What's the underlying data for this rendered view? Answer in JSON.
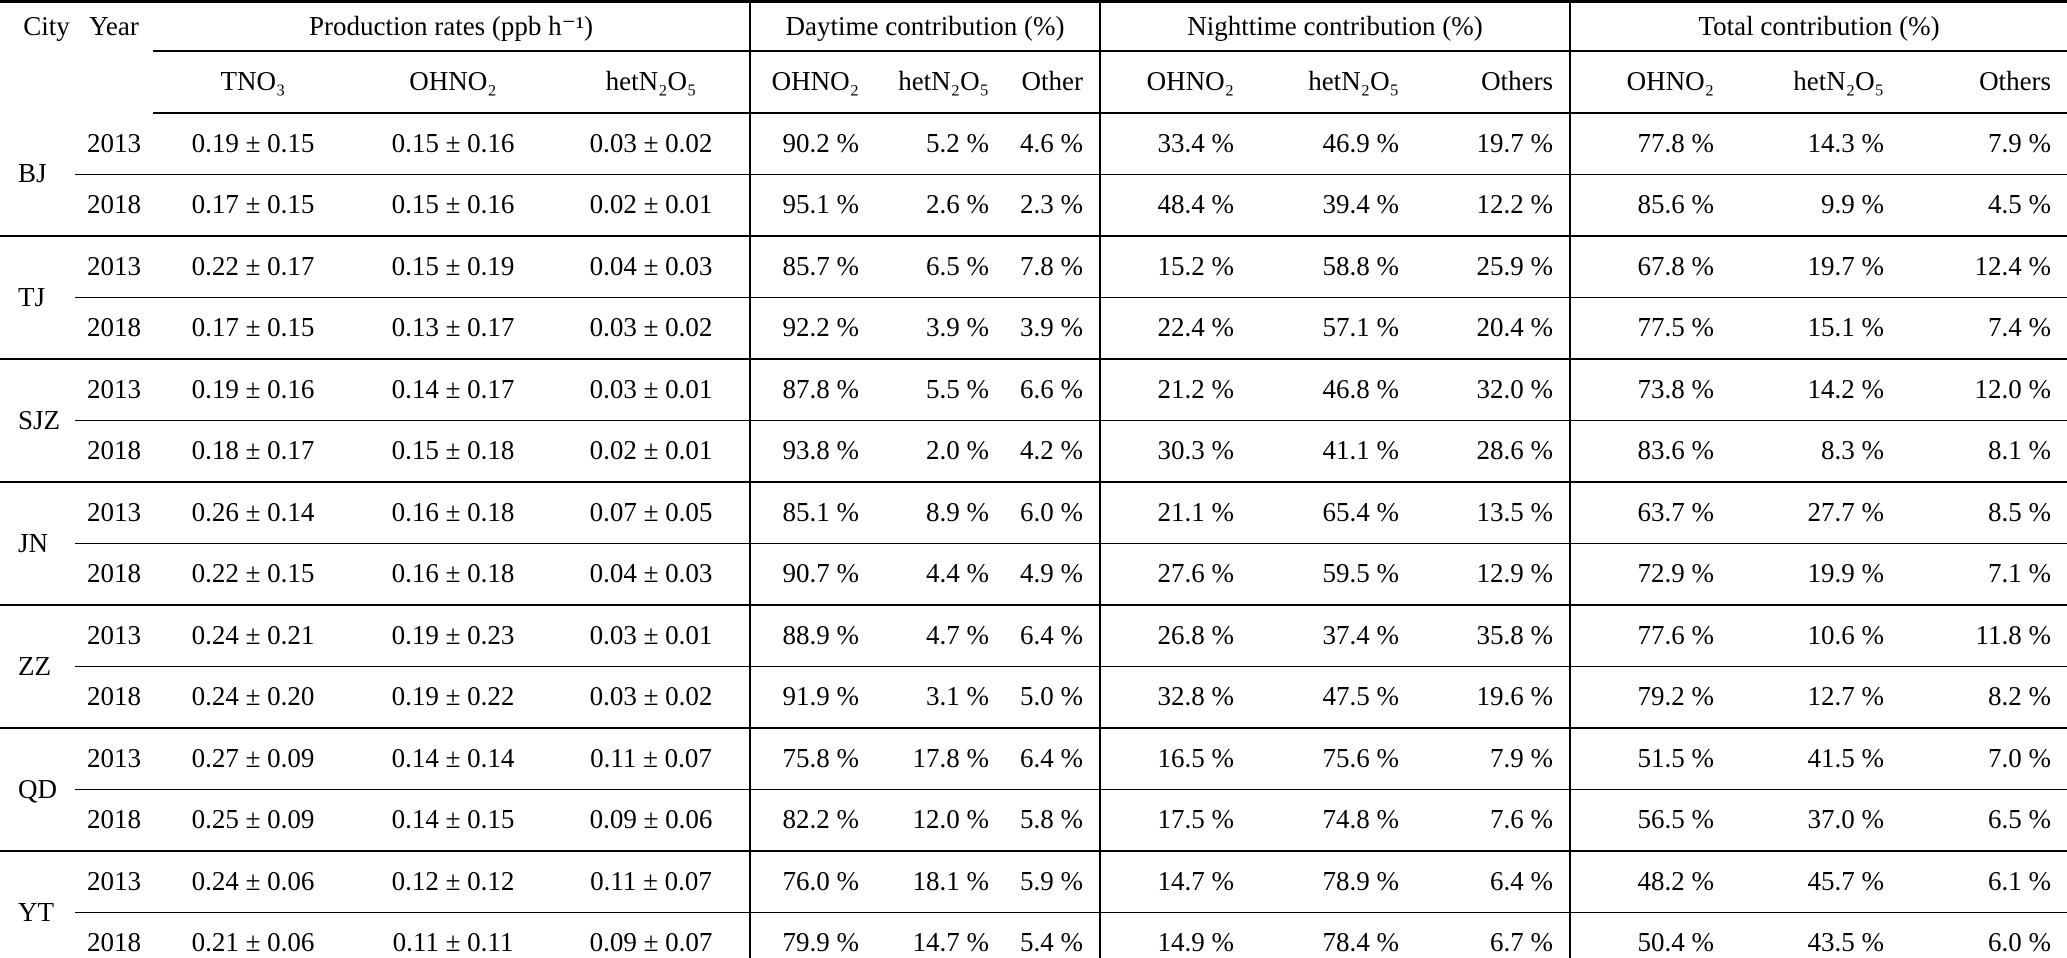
{
  "table": {
    "header": {
      "city": "City",
      "year": "Year",
      "groups": [
        {
          "label": "Production rates (ppb h⁻¹)",
          "columns": [
            "TNO₃",
            "OHNO₂",
            "hetN₂O₅"
          ]
        },
        {
          "label": "Daytime contribution (%)",
          "columns": [
            "OHNO₂",
            "hetN₂O₅",
            "Other"
          ]
        },
        {
          "label": "Nighttime contribution (%)",
          "columns": [
            "OHNO₂",
            "hetN₂O₅",
            "Others"
          ]
        },
        {
          "label": "Total contribution (%)",
          "columns": [
            "OHNO₂",
            "hetN₂O₅",
            "Others"
          ]
        }
      ]
    },
    "city_groups": [
      {
        "city": "BJ",
        "rows": [
          {
            "year": "2013",
            "production": [
              "0.19 ± 0.15",
              "0.15 ± 0.16",
              "0.03 ± 0.02"
            ],
            "daytime": [
              "90.2 %",
              "5.2 %",
              "4.6 %"
            ],
            "nighttime": [
              "33.4 %",
              "46.9 %",
              "19.7 %"
            ],
            "total": [
              "77.8 %",
              "14.3 %",
              "7.9 %"
            ]
          },
          {
            "year": "2018",
            "production": [
              "0.17 ± 0.15",
              "0.15 ± 0.16",
              "0.02 ± 0.01"
            ],
            "daytime": [
              "95.1 %",
              "2.6 %",
              "2.3 %"
            ],
            "nighttime": [
              "48.4 %",
              "39.4 %",
              "12.2 %"
            ],
            "total": [
              "85.6 %",
              "9.9 %",
              "4.5 %"
            ]
          }
        ]
      },
      {
        "city": "TJ",
        "rows": [
          {
            "year": "2013",
            "production": [
              "0.22 ± 0.17",
              "0.15 ± 0.19",
              "0.04 ± 0.03"
            ],
            "daytime": [
              "85.7 %",
              "6.5 %",
              "7.8 %"
            ],
            "nighttime": [
              "15.2 %",
              "58.8 %",
              "25.9 %"
            ],
            "total": [
              "67.8 %",
              "19.7 %",
              "12.4 %"
            ]
          },
          {
            "year": "2018",
            "production": [
              "0.17 ± 0.15",
              "0.13 ± 0.17",
              "0.03 ± 0.02"
            ],
            "daytime": [
              "92.2 %",
              "3.9 %",
              "3.9 %"
            ],
            "nighttime": [
              "22.4 %",
              "57.1 %",
              "20.4 %"
            ],
            "total": [
              "77.5 %",
              "15.1 %",
              "7.4 %"
            ]
          }
        ]
      },
      {
        "city": "SJZ",
        "rows": [
          {
            "year": "2013",
            "production": [
              "0.19 ± 0.16",
              "0.14 ± 0.17",
              "0.03 ± 0.01"
            ],
            "daytime": [
              "87.8 %",
              "5.5 %",
              "6.6 %"
            ],
            "nighttime": [
              "21.2 %",
              "46.8 %",
              "32.0 %"
            ],
            "total": [
              "73.8 %",
              "14.2 %",
              "12.0 %"
            ]
          },
          {
            "year": "2018",
            "production": [
              "0.18 ± 0.17",
              "0.15 ± 0.18",
              "0.02 ± 0.01"
            ],
            "daytime": [
              "93.8 %",
              "2.0 %",
              "4.2 %"
            ],
            "nighttime": [
              "30.3 %",
              "41.1 %",
              "28.6 %"
            ],
            "total": [
              "83.6 %",
              "8.3 %",
              "8.1 %"
            ]
          }
        ]
      },
      {
        "city": "JN",
        "rows": [
          {
            "year": "2013",
            "production": [
              "0.26 ± 0.14",
              "0.16 ± 0.18",
              "0.07 ± 0.05"
            ],
            "daytime": [
              "85.1 %",
              "8.9 %",
              "6.0 %"
            ],
            "nighttime": [
              "21.1 %",
              "65.4 %",
              "13.5 %"
            ],
            "total": [
              "63.7 %",
              "27.7 %",
              "8.5 %"
            ]
          },
          {
            "year": "2018",
            "production": [
              "0.22 ± 0.15",
              "0.16 ± 0.18",
              "0.04 ± 0.03"
            ],
            "daytime": [
              "90.7 %",
              "4.4 %",
              "4.9 %"
            ],
            "nighttime": [
              "27.6 %",
              "59.5 %",
              "12.9 %"
            ],
            "total": [
              "72.9 %",
              "19.9 %",
              "7.1 %"
            ]
          }
        ]
      },
      {
        "city": "ZZ",
        "rows": [
          {
            "year": "2013",
            "production": [
              "0.24 ± 0.21",
              "0.19 ± 0.23",
              "0.03 ± 0.01"
            ],
            "daytime": [
              "88.9 %",
              "4.7 %",
              "6.4 %"
            ],
            "nighttime": [
              "26.8 %",
              "37.4 %",
              "35.8 %"
            ],
            "total": [
              "77.6 %",
              "10.6 %",
              "11.8 %"
            ]
          },
          {
            "year": "2018",
            "production": [
              "0.24 ± 0.20",
              "0.19 ± 0.22",
              "0.03 ± 0.02"
            ],
            "daytime": [
              "91.9 %",
              "3.1 %",
              "5.0 %"
            ],
            "nighttime": [
              "32.8 %",
              "47.5 %",
              "19.6 %"
            ],
            "total": [
              "79.2 %",
              "12.7 %",
              "8.2 %"
            ]
          }
        ]
      },
      {
        "city": "QD",
        "rows": [
          {
            "year": "2013",
            "production": [
              "0.27 ± 0.09",
              "0.14 ± 0.14",
              "0.11 ± 0.07"
            ],
            "daytime": [
              "75.8 %",
              "17.8 %",
              "6.4 %"
            ],
            "nighttime": [
              "16.5 %",
              "75.6 %",
              "7.9 %"
            ],
            "total": [
              "51.5 %",
              "41.5 %",
              "7.0 %"
            ]
          },
          {
            "year": "2018",
            "production": [
              "0.25 ± 0.09",
              "0.14 ± 0.15",
              "0.09 ± 0.06"
            ],
            "daytime": [
              "82.2 %",
              "12.0 %",
              "5.8 %"
            ],
            "nighttime": [
              "17.5 %",
              "74.8 %",
              "7.6 %"
            ],
            "total": [
              "56.5 %",
              "37.0 %",
              "6.5 %"
            ]
          }
        ]
      },
      {
        "city": "YT",
        "rows": [
          {
            "year": "2013",
            "production": [
              "0.24 ± 0.06",
              "0.12 ± 0.12",
              "0.11 ± 0.07"
            ],
            "daytime": [
              "76.0 %",
              "18.1 %",
              "5.9 %"
            ],
            "nighttime": [
              "14.7 %",
              "78.9 %",
              "6.4 %"
            ],
            "total": [
              "48.2 %",
              "45.7 %",
              "6.1 %"
            ]
          },
          {
            "year": "2018",
            "production": [
              "0.21 ± 0.06",
              "0.11 ± 0.11",
              "0.09 ± 0.07"
            ],
            "daytime": [
              "79.9 %",
              "14.7 %",
              "5.4 %"
            ],
            "nighttime": [
              "14.9 %",
              "78.4 %",
              "6.7 %"
            ],
            "total": [
              "50.4 %",
              "43.5 %",
              "6.0 %"
            ]
          }
        ]
      }
    ]
  }
}
